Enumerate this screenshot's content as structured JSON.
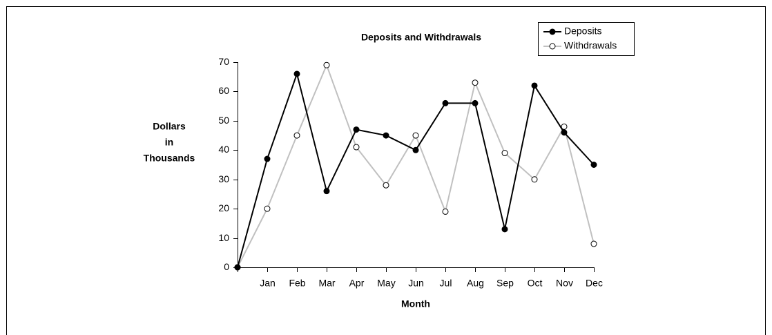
{
  "chart_data": {
    "type": "line",
    "title": "Deposits and Withdrawals",
    "x_label": "Month",
    "y_label": [
      "Dollars",
      "in",
      "Thousands"
    ],
    "categories": [
      null,
      "Jan",
      "Feb",
      "Mar",
      "Apr",
      "May",
      "Jun",
      "Jul",
      "Aug",
      "Sep",
      "Oct",
      "Nov",
      "Dec"
    ],
    "series": [
      {
        "name": "Deposits",
        "color": "#000000",
        "marker_fill": "#000000",
        "values": [
          0,
          37,
          66,
          26,
          47,
          45,
          40,
          56,
          56,
          13,
          62,
          46,
          35
        ]
      },
      {
        "name": "Withdrawals",
        "color": "#c0c0c0",
        "marker_fill": "#ffffff",
        "values": [
          0,
          20,
          45,
          69,
          41,
          28,
          45,
          19,
          63,
          39,
          30,
          48,
          8
        ]
      }
    ],
    "ylim": [
      0,
      70
    ],
    "yticks": [
      0,
      10,
      20,
      30,
      40,
      50,
      60,
      70
    ],
    "legend": "upper right"
  }
}
